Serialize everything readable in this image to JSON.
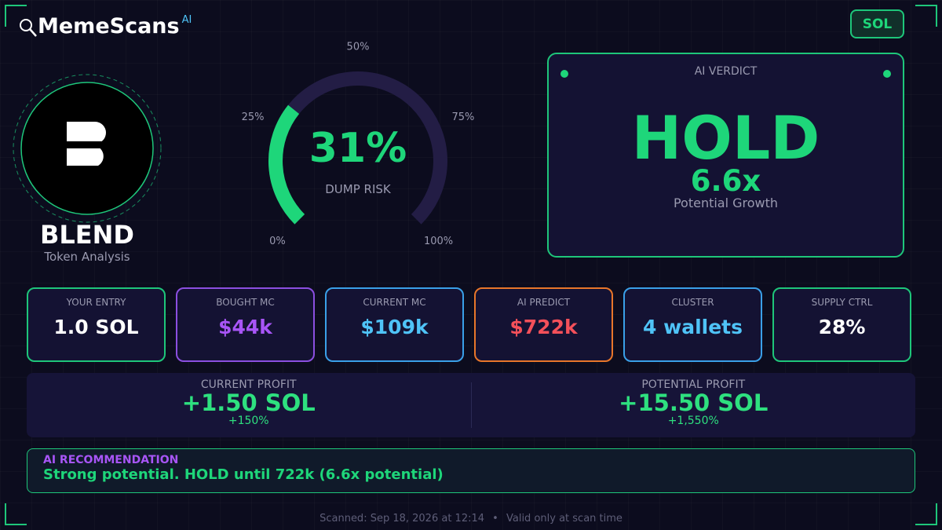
{
  "header": {
    "brand": "MemeScans",
    "badge": "AI",
    "chain": "SOL"
  },
  "token": {
    "name": "BLEND",
    "subtitle": "Token Analysis"
  },
  "gauge": {
    "value": 31,
    "label": "31%",
    "caption": "DUMP RISK",
    "ticks": [
      {
        "value": 0,
        "label": "0%"
      },
      {
        "value": 25,
        "label": "25%"
      },
      {
        "value": 50,
        "label": "50%"
      },
      {
        "value": 75,
        "label": "75%"
      },
      {
        "value": 100,
        "label": "100%"
      }
    ]
  },
  "verdict": {
    "heading": "AI VERDICT",
    "call": "HOLD",
    "multiple": "6.6x",
    "caption": "Potential Growth"
  },
  "stats": [
    {
      "label": "YOUR ENTRY",
      "value": "1.0 SOL"
    },
    {
      "label": "BOUGHT MC",
      "value": "$44k"
    },
    {
      "label": "CURRENT MC",
      "value": "$109k"
    },
    {
      "label": "AI PREDICT",
      "value": "$722k"
    },
    {
      "label": "CLUSTER",
      "value": "4 wallets"
    },
    {
      "label": "SUPPLY CTRL",
      "value": "28%"
    }
  ],
  "profits": [
    {
      "label": "CURRENT PROFIT",
      "value": "+1.50 SOL",
      "percent": "+150%"
    },
    {
      "label": "POTENTIAL PROFIT",
      "value": "+15.50 SOL",
      "percent": "+1,550%"
    }
  ],
  "recommendation": {
    "label": "AI RECOMMENDATION",
    "text": "Strong potential. HOLD until 722k (6.6x potential)"
  },
  "footer": {
    "scanned": "Scanned: Sep 18, 2026 at 12:14",
    "separator": "•",
    "note": "Valid only at scan time"
  }
}
